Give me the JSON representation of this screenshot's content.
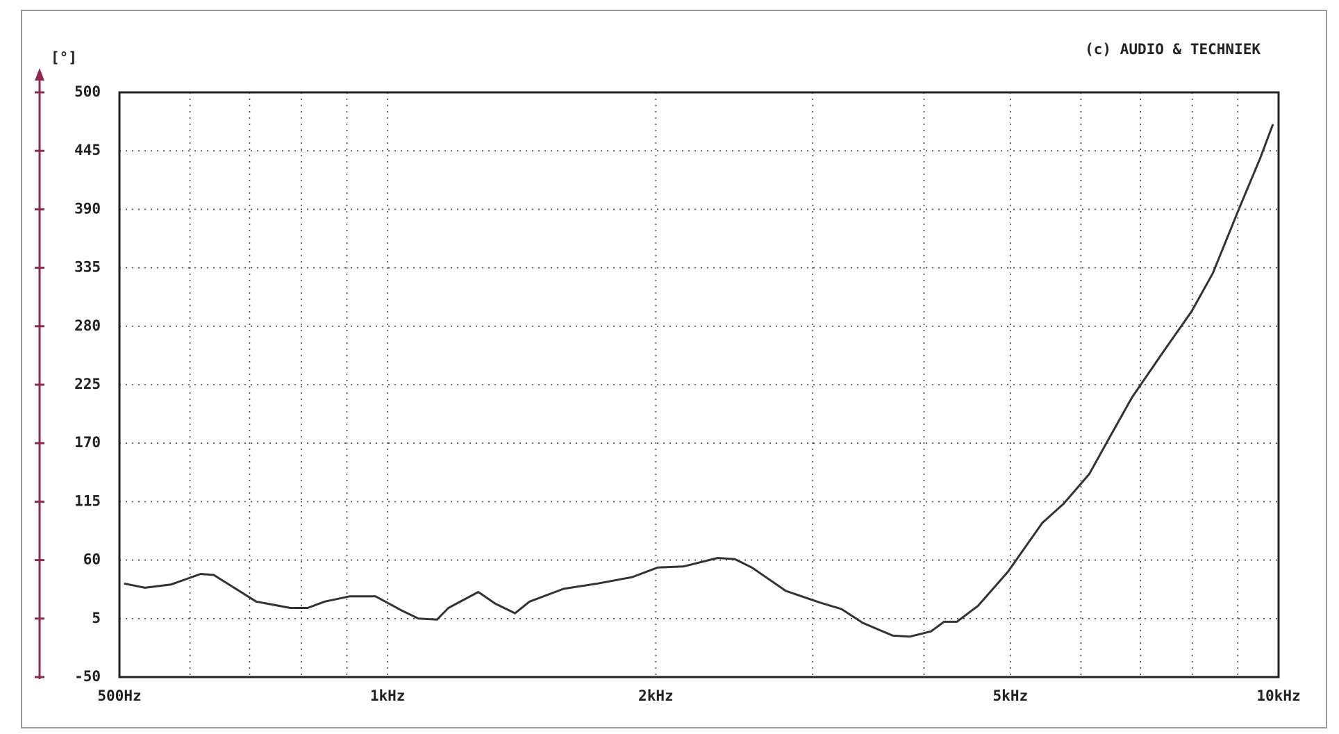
{
  "chart_data": {
    "type": "line",
    "title": "(c) AUDIO & TECHNIEK",
    "y_label": "[°]",
    "x_scale": "log",
    "x": [
      506,
      534,
      571,
      617,
      638,
      712,
      778,
      813,
      850,
      907,
      969,
      1035,
      1083,
      1136,
      1170,
      1264,
      1321,
      1390,
      1443,
      1576,
      1721,
      1881,
      2009,
      2147,
      2346,
      2452,
      2564,
      2799,
      3058,
      3231,
      3413,
      3688,
      3854,
      4074,
      4211,
      4354,
      4599,
      4968,
      5430,
      5737,
      6131,
      6477,
      6846,
      7396,
      7987,
      8439,
      9022,
      9535,
      9855
    ],
    "series": [
      {
        "color": "#333333",
        "values": [
          38,
          34,
          37,
          47,
          46,
          21,
          15,
          15,
          21,
          26,
          26,
          13,
          5,
          4,
          15,
          30,
          19,
          10,
          21,
          33,
          38,
          44,
          53,
          54,
          62,
          61,
          53,
          31,
          20,
          14,
          1,
          -11,
          -12,
          -7,
          2,
          2,
          17,
          49,
          95,
          113,
          141,
          177,
          213,
          254,
          294,
          330,
          390,
          438,
          470
        ]
      }
    ],
    "xlim": [
      500,
      10000
    ],
    "xticks": [
      {
        "value": 500,
        "label": "500Hz"
      },
      {
        "value": 1000,
        "label": "1kHz"
      },
      {
        "value": 2000,
        "label": "2kHz"
      },
      {
        "value": 5000,
        "label": "5kHz"
      },
      {
        "value": 10000,
        "label": "10kHz"
      }
    ],
    "xgrid_minor": [
      600,
      700,
      800,
      900,
      3000,
      4000,
      6000,
      7000,
      8000,
      9000
    ],
    "ylim": [
      -50,
      500
    ],
    "yticks": [
      -50,
      5,
      60,
      115,
      170,
      225,
      280,
      335,
      390,
      445,
      500
    ],
    "grid": true
  }
}
